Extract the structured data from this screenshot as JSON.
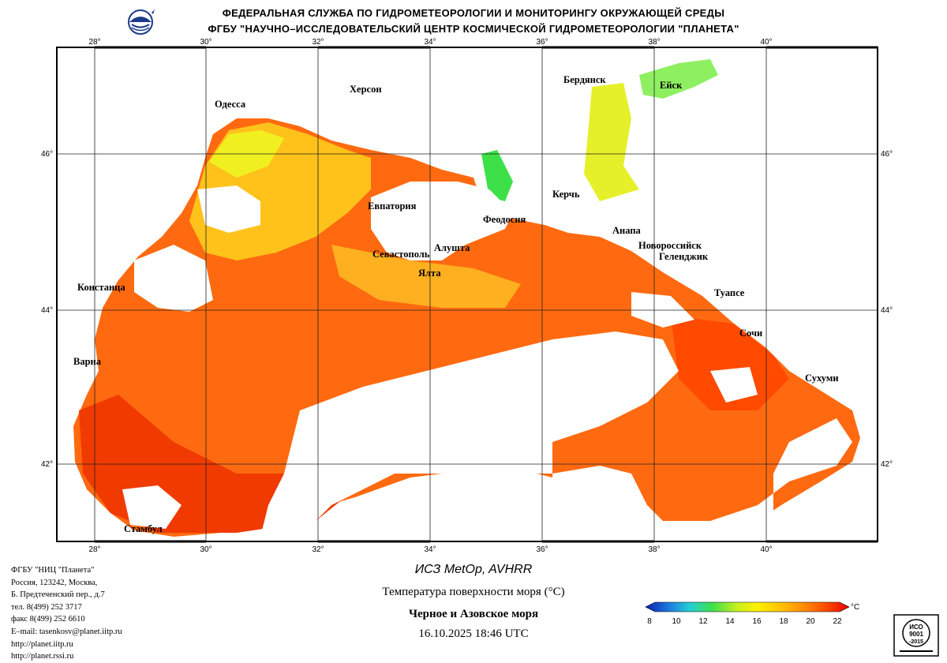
{
  "header": {
    "line1": "ФЕДЕРАЛЬНАЯ СЛУЖБА ПО ГИДРОМЕТЕОРОЛОГИИ И МОНИТОРИНГУ ОКРУЖАЮЩЕЙ СРЕДЫ",
    "line2": "ФГБУ \"НАУЧНО–ИССЛЕДОВАТЕЛЬСКИЙ ЦЕНТР КОСМИЧЕСКОЙ ГИДРОМЕТЕОРОЛОГИИ \"ПЛАНЕТА\""
  },
  "axes": {
    "lon": [
      "28°",
      "30°",
      "32°",
      "34°",
      "36°",
      "38°",
      "40°"
    ],
    "lat": [
      "46°",
      "44°",
      "42°"
    ]
  },
  "cities": {
    "kherson": "Херсон",
    "odessa": "Одесса",
    "berdyansk": "Бердянск",
    "yeysk": "Ейск",
    "kerch": "Керчь",
    "evpatoria": "Евпатория",
    "feodosia": "Феодосия",
    "anapa": "Анапа",
    "novorossiysk": "Новороссийск",
    "gelendzhik": "Геленджик",
    "alushta": "Алушта",
    "sevastopol": "Севастополь",
    "yalta": "Ялта",
    "tuapse": "Туапсе",
    "constanta": "Констанца",
    "sochi": "Сочи",
    "varna": "Варна",
    "sukhumi": "Сухуми",
    "istanbul": "Стамбул"
  },
  "organization": {
    "lines": [
      "ФГБУ \"НИЦ \"Планета\"",
      "Россия, 123242, Москва,",
      "Б. Предтеченский пер., д.7",
      "тел. 8(499) 252 3717",
      "факс 8(499) 252 6610",
      "E–mail: tasenkosv@planet.iitp.ru",
      "http://planet.iitp.ru",
      "http://planet.rssi.ru"
    ]
  },
  "caption": {
    "satellite": "ИСЗ MetOp, AVHRR",
    "parameter": "Температура поверхности моря (°C)",
    "region": "Черное и Азовское моря",
    "datetime": "16.10.2025 18:46 UTC"
  },
  "colorbar": {
    "unit": "°C",
    "ticks": [
      "8",
      "10",
      "12",
      "14",
      "16",
      "18",
      "20",
      "22"
    ],
    "colors": [
      "#0a1fb0",
      "#1e7fe0",
      "#22d0d0",
      "#3ee04a",
      "#c8f020",
      "#fff000",
      "#ffc000",
      "#ff8a00",
      "#ff4a00",
      "#e80000"
    ]
  },
  "iso_badge": {
    "line1": "ИСО",
    "line2": "9001",
    "line3": "-2015"
  }
}
